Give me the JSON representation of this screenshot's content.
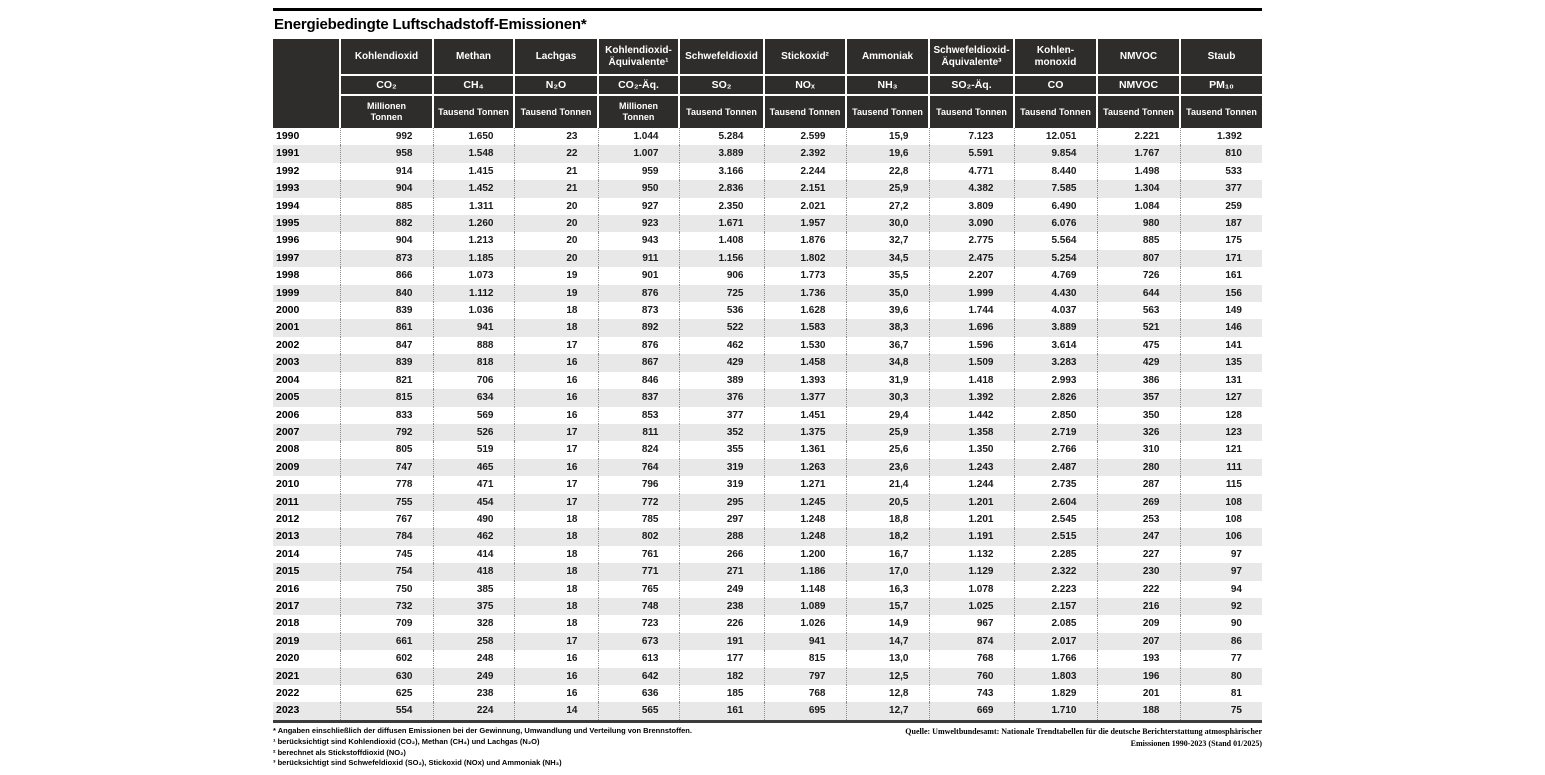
{
  "title": "Energiebedingte Luftschadstoff-Emissionen*",
  "table": {
    "corner": "",
    "columns": [
      {
        "name": "Kohlendioxid",
        "formula": "CO₂",
        "unit": "Millionen\nTonnen"
      },
      {
        "name": "Methan",
        "formula": "CH₄",
        "unit": "Tausend Tonnen"
      },
      {
        "name": "Lachgas",
        "formula": "N₂O",
        "unit": "Tausend Tonnen"
      },
      {
        "name": "Kohlendioxid-Äquivalente¹",
        "formula": "CO₂-Äq.",
        "unit": "Millionen\nTonnen"
      },
      {
        "name": "Schwefeldioxid",
        "formula": "SO₂",
        "unit": "Tausend Tonnen"
      },
      {
        "name": "Stickoxid²",
        "formula": "NOₓ",
        "unit": "Tausend Tonnen"
      },
      {
        "name": "Ammoniak",
        "formula": "NH₃",
        "unit": "Tausend Tonnen"
      },
      {
        "name": "Schwefeldioxid-Äquivalente³",
        "formula": "SO₂-Äq.",
        "unit": "Tausend Tonnen"
      },
      {
        "name": "Kohlen-monoxid",
        "formula": "CO",
        "unit": "Tausend Tonnen"
      },
      {
        "name": "NMVOC",
        "formula": "NMVOC",
        "unit": "Tausend Tonnen"
      },
      {
        "name": "Staub",
        "formula": "PM₁₀",
        "unit": "Tausend Tonnen"
      }
    ],
    "rows": [
      {
        "year": "1990",
        "values": [
          "992",
          "1.650",
          "23",
          "1.044",
          "5.284",
          "2.599",
          "15,9",
          "7.123",
          "12.051",
          "2.221",
          "1.392"
        ]
      },
      {
        "year": "1991",
        "values": [
          "958",
          "1.548",
          "22",
          "1.007",
          "3.889",
          "2.392",
          "19,6",
          "5.591",
          "9.854",
          "1.767",
          "810"
        ]
      },
      {
        "year": "1992",
        "values": [
          "914",
          "1.415",
          "21",
          "959",
          "3.166",
          "2.244",
          "22,8",
          "4.771",
          "8.440",
          "1.498",
          "533"
        ]
      },
      {
        "year": "1993",
        "values": [
          "904",
          "1.452",
          "21",
          "950",
          "2.836",
          "2.151",
          "25,9",
          "4.382",
          "7.585",
          "1.304",
          "377"
        ]
      },
      {
        "year": "1994",
        "values": [
          "885",
          "1.311",
          "20",
          "927",
          "2.350",
          "2.021",
          "27,2",
          "3.809",
          "6.490",
          "1.084",
          "259"
        ]
      },
      {
        "year": "1995",
        "values": [
          "882",
          "1.260",
          "20",
          "923",
          "1.671",
          "1.957",
          "30,0",
          "3.090",
          "6.076",
          "980",
          "187"
        ]
      },
      {
        "year": "1996",
        "values": [
          "904",
          "1.213",
          "20",
          "943",
          "1.408",
          "1.876",
          "32,7",
          "2.775",
          "5.564",
          "885",
          "175"
        ]
      },
      {
        "year": "1997",
        "values": [
          "873",
          "1.185",
          "20",
          "911",
          "1.156",
          "1.802",
          "34,5",
          "2.475",
          "5.254",
          "807",
          "171"
        ]
      },
      {
        "year": "1998",
        "values": [
          "866",
          "1.073",
          "19",
          "901",
          "906",
          "1.773",
          "35,5",
          "2.207",
          "4.769",
          "726",
          "161"
        ]
      },
      {
        "year": "1999",
        "values": [
          "840",
          "1.112",
          "19",
          "876",
          "725",
          "1.736",
          "35,0",
          "1.999",
          "4.430",
          "644",
          "156"
        ]
      },
      {
        "year": "2000",
        "values": [
          "839",
          "1.036",
          "18",
          "873",
          "536",
          "1.628",
          "39,6",
          "1.744",
          "4.037",
          "563",
          "149"
        ]
      },
      {
        "year": "2001",
        "values": [
          "861",
          "941",
          "18",
          "892",
          "522",
          "1.583",
          "38,3",
          "1.696",
          "3.889",
          "521",
          "146"
        ]
      },
      {
        "year": "2002",
        "values": [
          "847",
          "888",
          "17",
          "876",
          "462",
          "1.530",
          "36,7",
          "1.596",
          "3.614",
          "475",
          "141"
        ]
      },
      {
        "year": "2003",
        "values": [
          "839",
          "818",
          "16",
          "867",
          "429",
          "1.458",
          "34,8",
          "1.509",
          "3.283",
          "429",
          "135"
        ]
      },
      {
        "year": "2004",
        "values": [
          "821",
          "706",
          "16",
          "846",
          "389",
          "1.393",
          "31,9",
          "1.418",
          "2.993",
          "386",
          "131"
        ]
      },
      {
        "year": "2005",
        "values": [
          "815",
          "634",
          "16",
          "837",
          "376",
          "1.377",
          "30,3",
          "1.392",
          "2.826",
          "357",
          "127"
        ]
      },
      {
        "year": "2006",
        "values": [
          "833",
          "569",
          "16",
          "853",
          "377",
          "1.451",
          "29,4",
          "1.442",
          "2.850",
          "350",
          "128"
        ]
      },
      {
        "year": "2007",
        "values": [
          "792",
          "526",
          "17",
          "811",
          "352",
          "1.375",
          "25,9",
          "1.358",
          "2.719",
          "326",
          "123"
        ]
      },
      {
        "year": "2008",
        "values": [
          "805",
          "519",
          "17",
          "824",
          "355",
          "1.361",
          "25,6",
          "1.350",
          "2.766",
          "310",
          "121"
        ]
      },
      {
        "year": "2009",
        "values": [
          "747",
          "465",
          "16",
          "764",
          "319",
          "1.263",
          "23,6",
          "1.243",
          "2.487",
          "280",
          "111"
        ]
      },
      {
        "year": "2010",
        "values": [
          "778",
          "471",
          "17",
          "796",
          "319",
          "1.271",
          "21,4",
          "1.244",
          "2.735",
          "287",
          "115"
        ]
      },
      {
        "year": "2011",
        "values": [
          "755",
          "454",
          "17",
          "772",
          "295",
          "1.245",
          "20,5",
          "1.201",
          "2.604",
          "269",
          "108"
        ]
      },
      {
        "year": "2012",
        "values": [
          "767",
          "490",
          "18",
          "785",
          "297",
          "1.248",
          "18,8",
          "1.201",
          "2.545",
          "253",
          "108"
        ]
      },
      {
        "year": "2013",
        "values": [
          "784",
          "462",
          "18",
          "802",
          "288",
          "1.248",
          "18,2",
          "1.191",
          "2.515",
          "247",
          "106"
        ]
      },
      {
        "year": "2014",
        "values": [
          "745",
          "414",
          "18",
          "761",
          "266",
          "1.200",
          "16,7",
          "1.132",
          "2.285",
          "227",
          "97"
        ]
      },
      {
        "year": "2015",
        "values": [
          "754",
          "418",
          "18",
          "771",
          "271",
          "1.186",
          "17,0",
          "1.129",
          "2.322",
          "230",
          "97"
        ]
      },
      {
        "year": "2016",
        "values": [
          "750",
          "385",
          "18",
          "765",
          "249",
          "1.148",
          "16,3",
          "1.078",
          "2.223",
          "222",
          "94"
        ]
      },
      {
        "year": "2017",
        "values": [
          "732",
          "375",
          "18",
          "748",
          "238",
          "1.089",
          "15,7",
          "1.025",
          "2.157",
          "216",
          "92"
        ]
      },
      {
        "year": "2018",
        "values": [
          "709",
          "328",
          "18",
          "723",
          "226",
          "1.026",
          "14,9",
          "967",
          "2.085",
          "209",
          "90"
        ]
      },
      {
        "year": "2019",
        "values": [
          "661",
          "258",
          "17",
          "673",
          "191",
          "941",
          "14,7",
          "874",
          "2.017",
          "207",
          "86"
        ]
      },
      {
        "year": "2020",
        "values": [
          "602",
          "248",
          "16",
          "613",
          "177",
          "815",
          "13,0",
          "768",
          "1.766",
          "193",
          "77"
        ]
      },
      {
        "year": "2021",
        "values": [
          "630",
          "249",
          "16",
          "642",
          "182",
          "797",
          "12,5",
          "760",
          "1.803",
          "196",
          "80"
        ]
      },
      {
        "year": "2022",
        "values": [
          "625",
          "238",
          "16",
          "636",
          "185",
          "768",
          "12,8",
          "743",
          "1.829",
          "201",
          "81"
        ]
      },
      {
        "year": "2023",
        "values": [
          "554",
          "224",
          "14",
          "565",
          "161",
          "695",
          "12,7",
          "669",
          "1.710",
          "188",
          "75"
        ]
      }
    ]
  },
  "footnotes": [
    "* Angaben einschließlich der diffusen Emissionen bei der Gewinnung, Umwandlung und Verteilung von Brennstoffen.",
    "¹ berücksichtigt sind Kohlendioxid (CO₂), Methan (CH₄) und Lachgas (N₂O)",
    "² berechnet als Stickstoffdioxid (NO₂)",
    "³ berücksichtigt sind Schwefeldioxid (SO₂), Stickoxid (NOx) und Ammoniak (NH₃)"
  ],
  "source": [
    "Quelle: Umweltbundesamt: Nationale Trendtabellen für die deutsche Berichterstattung atmosphärischer",
    "Emissionen 1990-2023 (Stand 01/2025)"
  ],
  "colors": {
    "header_bg": "#2e2d2b",
    "stripe": "#e8e8e8",
    "top_rule": "#000000",
    "bottom_rule": "#3c3c3c",
    "dotted_divider": "#8c8c8c"
  },
  "chart_data": {
    "type": "table",
    "title": "Energiebedingte Luftschadstoff-Emissionen*",
    "categories": [
      1990,
      1991,
      1992,
      1993,
      1994,
      1995,
      1996,
      1997,
      1998,
      1999,
      2000,
      2001,
      2002,
      2003,
      2004,
      2005,
      2006,
      2007,
      2008,
      2009,
      2010,
      2011,
      2012,
      2013,
      2014,
      2015,
      2016,
      2017,
      2018,
      2019,
      2020,
      2021,
      2022,
      2023
    ],
    "series": [
      {
        "name": "Kohlendioxid (CO₂)",
        "unit": "Millionen Tonnen",
        "values": [
          992,
          958,
          914,
          904,
          885,
          882,
          904,
          873,
          866,
          840,
          839,
          861,
          847,
          839,
          821,
          815,
          833,
          792,
          805,
          747,
          778,
          755,
          767,
          784,
          745,
          754,
          750,
          732,
          709,
          661,
          602,
          630,
          625,
          554
        ]
      },
      {
        "name": "Methan (CH₄)",
        "unit": "Tausend Tonnen",
        "values": [
          1650,
          1548,
          1415,
          1452,
          1311,
          1260,
          1213,
          1185,
          1073,
          1112,
          1036,
          941,
          888,
          818,
          706,
          634,
          569,
          526,
          519,
          465,
          471,
          454,
          490,
          462,
          414,
          418,
          385,
          375,
          328,
          258,
          248,
          249,
          238,
          224
        ]
      },
      {
        "name": "Lachgas (N₂O)",
        "unit": "Tausend Tonnen",
        "values": [
          23,
          22,
          21,
          21,
          20,
          20,
          20,
          20,
          19,
          19,
          18,
          18,
          17,
          16,
          16,
          16,
          16,
          17,
          17,
          16,
          17,
          17,
          18,
          18,
          18,
          18,
          18,
          18,
          18,
          17,
          16,
          16,
          16,
          14
        ]
      },
      {
        "name": "Kohlendioxid-Äquivalente (CO₂-Äq.)",
        "unit": "Millionen Tonnen",
        "values": [
          1044,
          1007,
          959,
          950,
          927,
          923,
          943,
          911,
          901,
          876,
          873,
          892,
          876,
          867,
          846,
          837,
          853,
          811,
          824,
          764,
          796,
          772,
          785,
          802,
          761,
          771,
          765,
          748,
          723,
          673,
          613,
          642,
          636,
          565
        ]
      },
      {
        "name": "Schwefeldioxid (SO₂)",
        "unit": "Tausend Tonnen",
        "values": [
          5284,
          3889,
          3166,
          2836,
          2350,
          1671,
          1408,
          1156,
          906,
          725,
          536,
          522,
          462,
          429,
          389,
          376,
          377,
          352,
          355,
          319,
          319,
          295,
          297,
          288,
          266,
          271,
          249,
          238,
          226,
          191,
          177,
          182,
          185,
          161
        ]
      },
      {
        "name": "Stickoxid (NOₓ)",
        "unit": "Tausend Tonnen",
        "values": [
          2599,
          2392,
          2244,
          2151,
          2021,
          1957,
          1876,
          1802,
          1773,
          1736,
          1628,
          1583,
          1530,
          1458,
          1393,
          1377,
          1451,
          1375,
          1361,
          1263,
          1271,
          1245,
          1248,
          1248,
          1200,
          1186,
          1148,
          1089,
          1026,
          941,
          815,
          797,
          768,
          695
        ]
      },
      {
        "name": "Ammoniak (NH₃)",
        "unit": "Tausend Tonnen",
        "values": [
          15.9,
          19.6,
          22.8,
          25.9,
          27.2,
          30.0,
          32.7,
          34.5,
          35.5,
          35.0,
          39.6,
          38.3,
          36.7,
          34.8,
          31.9,
          30.3,
          29.4,
          25.9,
          25.6,
          23.6,
          21.4,
          20.5,
          18.8,
          18.2,
          16.7,
          17.0,
          16.3,
          15.7,
          14.9,
          14.7,
          13.0,
          12.5,
          12.8,
          12.7
        ]
      },
      {
        "name": "Schwefeldioxid-Äquivalente (SO₂-Äq.)",
        "unit": "Tausend Tonnen",
        "values": [
          7123,
          5591,
          4771,
          4382,
          3809,
          3090,
          2775,
          2475,
          2207,
          1999,
          1744,
          1696,
          1596,
          1509,
          1418,
          1392,
          1442,
          1358,
          1350,
          1243,
          1244,
          1201,
          1201,
          1191,
          1132,
          1129,
          1078,
          1025,
          967,
          874,
          768,
          760,
          743,
          669
        ]
      },
      {
        "name": "Kohlenmonoxid (CO)",
        "unit": "Tausend Tonnen",
        "values": [
          12051,
          9854,
          8440,
          7585,
          6490,
          6076,
          5564,
          5254,
          4769,
          4430,
          4037,
          3889,
          3614,
          3283,
          2993,
          2826,
          2850,
          2719,
          2766,
          2487,
          2735,
          2604,
          2545,
          2515,
          2285,
          2322,
          2223,
          2157,
          2085,
          2017,
          1766,
          1803,
          1829,
          1710
        ]
      },
      {
        "name": "NMVOC",
        "unit": "Tausend Tonnen",
        "values": [
          2221,
          1767,
          1498,
          1304,
          1084,
          980,
          885,
          807,
          726,
          644,
          563,
          521,
          475,
          429,
          386,
          357,
          350,
          326,
          310,
          280,
          287,
          269,
          253,
          247,
          227,
          230,
          222,
          216,
          209,
          207,
          193,
          196,
          201,
          188
        ]
      },
      {
        "name": "Staub (PM₁₀)",
        "unit": "Tausend Tonnen",
        "values": [
          1392,
          810,
          533,
          377,
          259,
          187,
          175,
          171,
          161,
          156,
          149,
          146,
          141,
          135,
          131,
          127,
          128,
          123,
          121,
          111,
          115,
          108,
          108,
          106,
          97,
          97,
          94,
          92,
          90,
          86,
          77,
          80,
          81,
          75
        ]
      }
    ]
  }
}
